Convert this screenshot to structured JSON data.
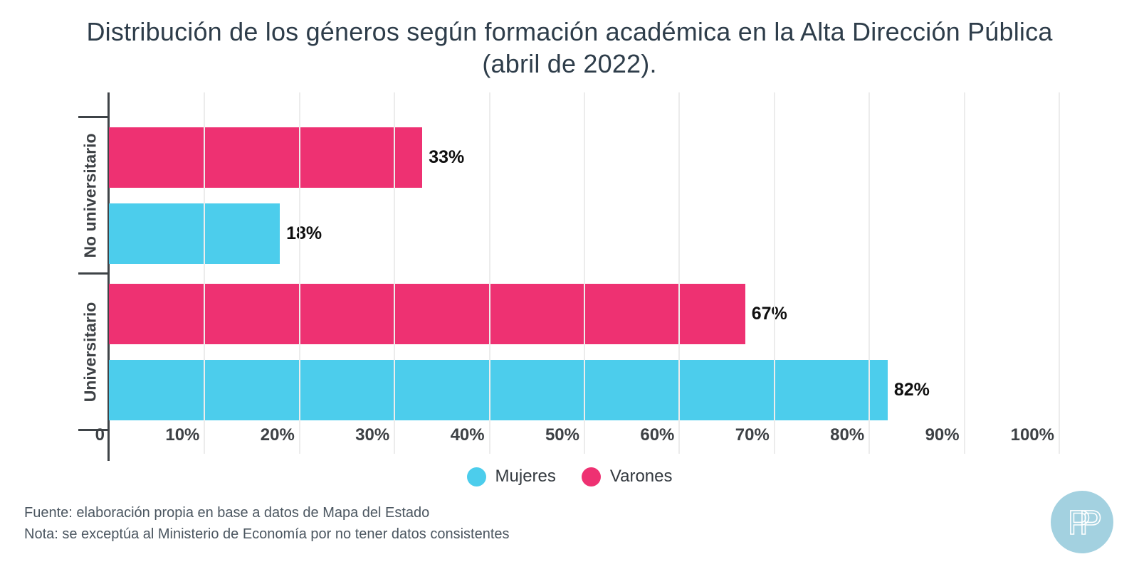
{
  "title": "Distribución de los géneros según formación académica en la Alta Dirección Pública (abril de 2022).",
  "chart_data": {
    "type": "bar",
    "orientation": "horizontal",
    "title": "Distribución de los géneros según formación académica en la Alta Dirección Pública (abril de 2022).",
    "categories": [
      "No universitario",
      "Universitario"
    ],
    "series": [
      {
        "name": "Mujeres",
        "color": "#4ccdec",
        "values": [
          18,
          82
        ],
        "labels": [
          "18%",
          "82%"
        ]
      },
      {
        "name": "Varones",
        "color": "#ee3172",
        "values": [
          33,
          67
        ],
        "labels": [
          "33%",
          "67%"
        ]
      }
    ],
    "row_order": [
      "Varones",
      "Mujeres"
    ],
    "xlim": [
      0,
      100
    ],
    "x_ticks": [
      {
        "value": 0,
        "label": "0"
      },
      {
        "value": 10,
        "label": "10%"
      },
      {
        "value": 20,
        "label": "20%"
      },
      {
        "value": 30,
        "label": "30%"
      },
      {
        "value": 40,
        "label": "40%"
      },
      {
        "value": 50,
        "label": "50%"
      },
      {
        "value": 60,
        "label": "60%"
      },
      {
        "value": 70,
        "label": "70%"
      },
      {
        "value": 80,
        "label": "80%"
      },
      {
        "value": 90,
        "label": "90%"
      },
      {
        "value": 100,
        "label": "100%"
      }
    ],
    "grid": true,
    "legend_position": "bottom",
    "legend": [
      {
        "label": "Mujeres",
        "color": "#4ccdec"
      },
      {
        "label": "Varones",
        "color": "#ee3172"
      }
    ],
    "colors": {
      "axis": "#3e4347",
      "gridline": "#ececec",
      "tick_label": "#3d4145",
      "value_label": "#0f0f0f",
      "title": "#2e3d4a"
    }
  },
  "footer": {
    "source": "Fuente: elaboración propia en base a datos de Mapa del Estado",
    "note": "Nota: se exceptúa al Ministerio de Economía por no tener datos consistentes"
  },
  "logo": {
    "letters": [
      "P",
      "P"
    ],
    "background_color": "#a3d1e0",
    "letter_color": "#ffffff"
  }
}
